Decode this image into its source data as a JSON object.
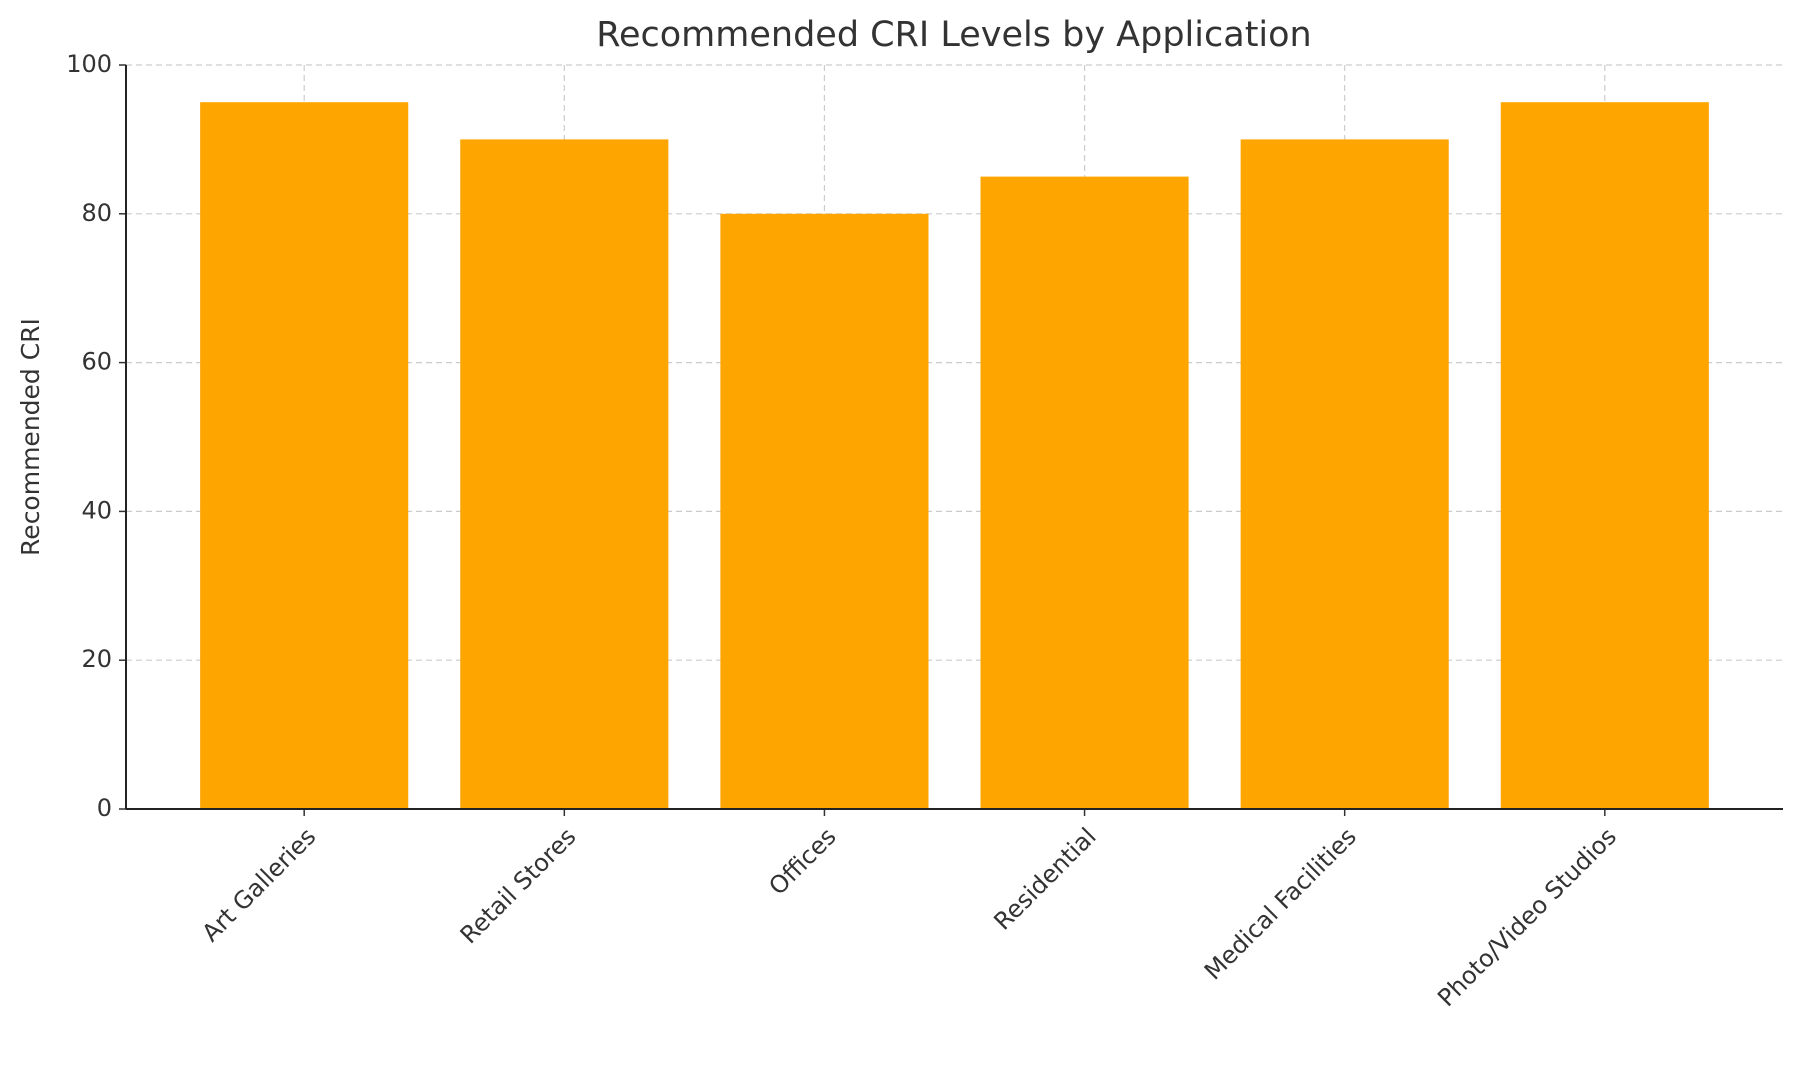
{
  "chart_data": {
    "type": "bar",
    "title": "Recommended CRI Levels by Application",
    "y_label": "Recommended CRI",
    "categories": [
      "Art Galleries",
      "Retail Stores",
      "Offices",
      "Residential",
      "Medical Facilities",
      "Photo/Video Studios"
    ],
    "values": [
      95,
      90,
      80,
      85,
      90,
      95
    ],
    "color": "#ffa500",
    "ylim": [
      0,
      100
    ],
    "yticks": [
      0,
      20,
      40,
      60,
      80,
      100
    ],
    "grid": true
  }
}
